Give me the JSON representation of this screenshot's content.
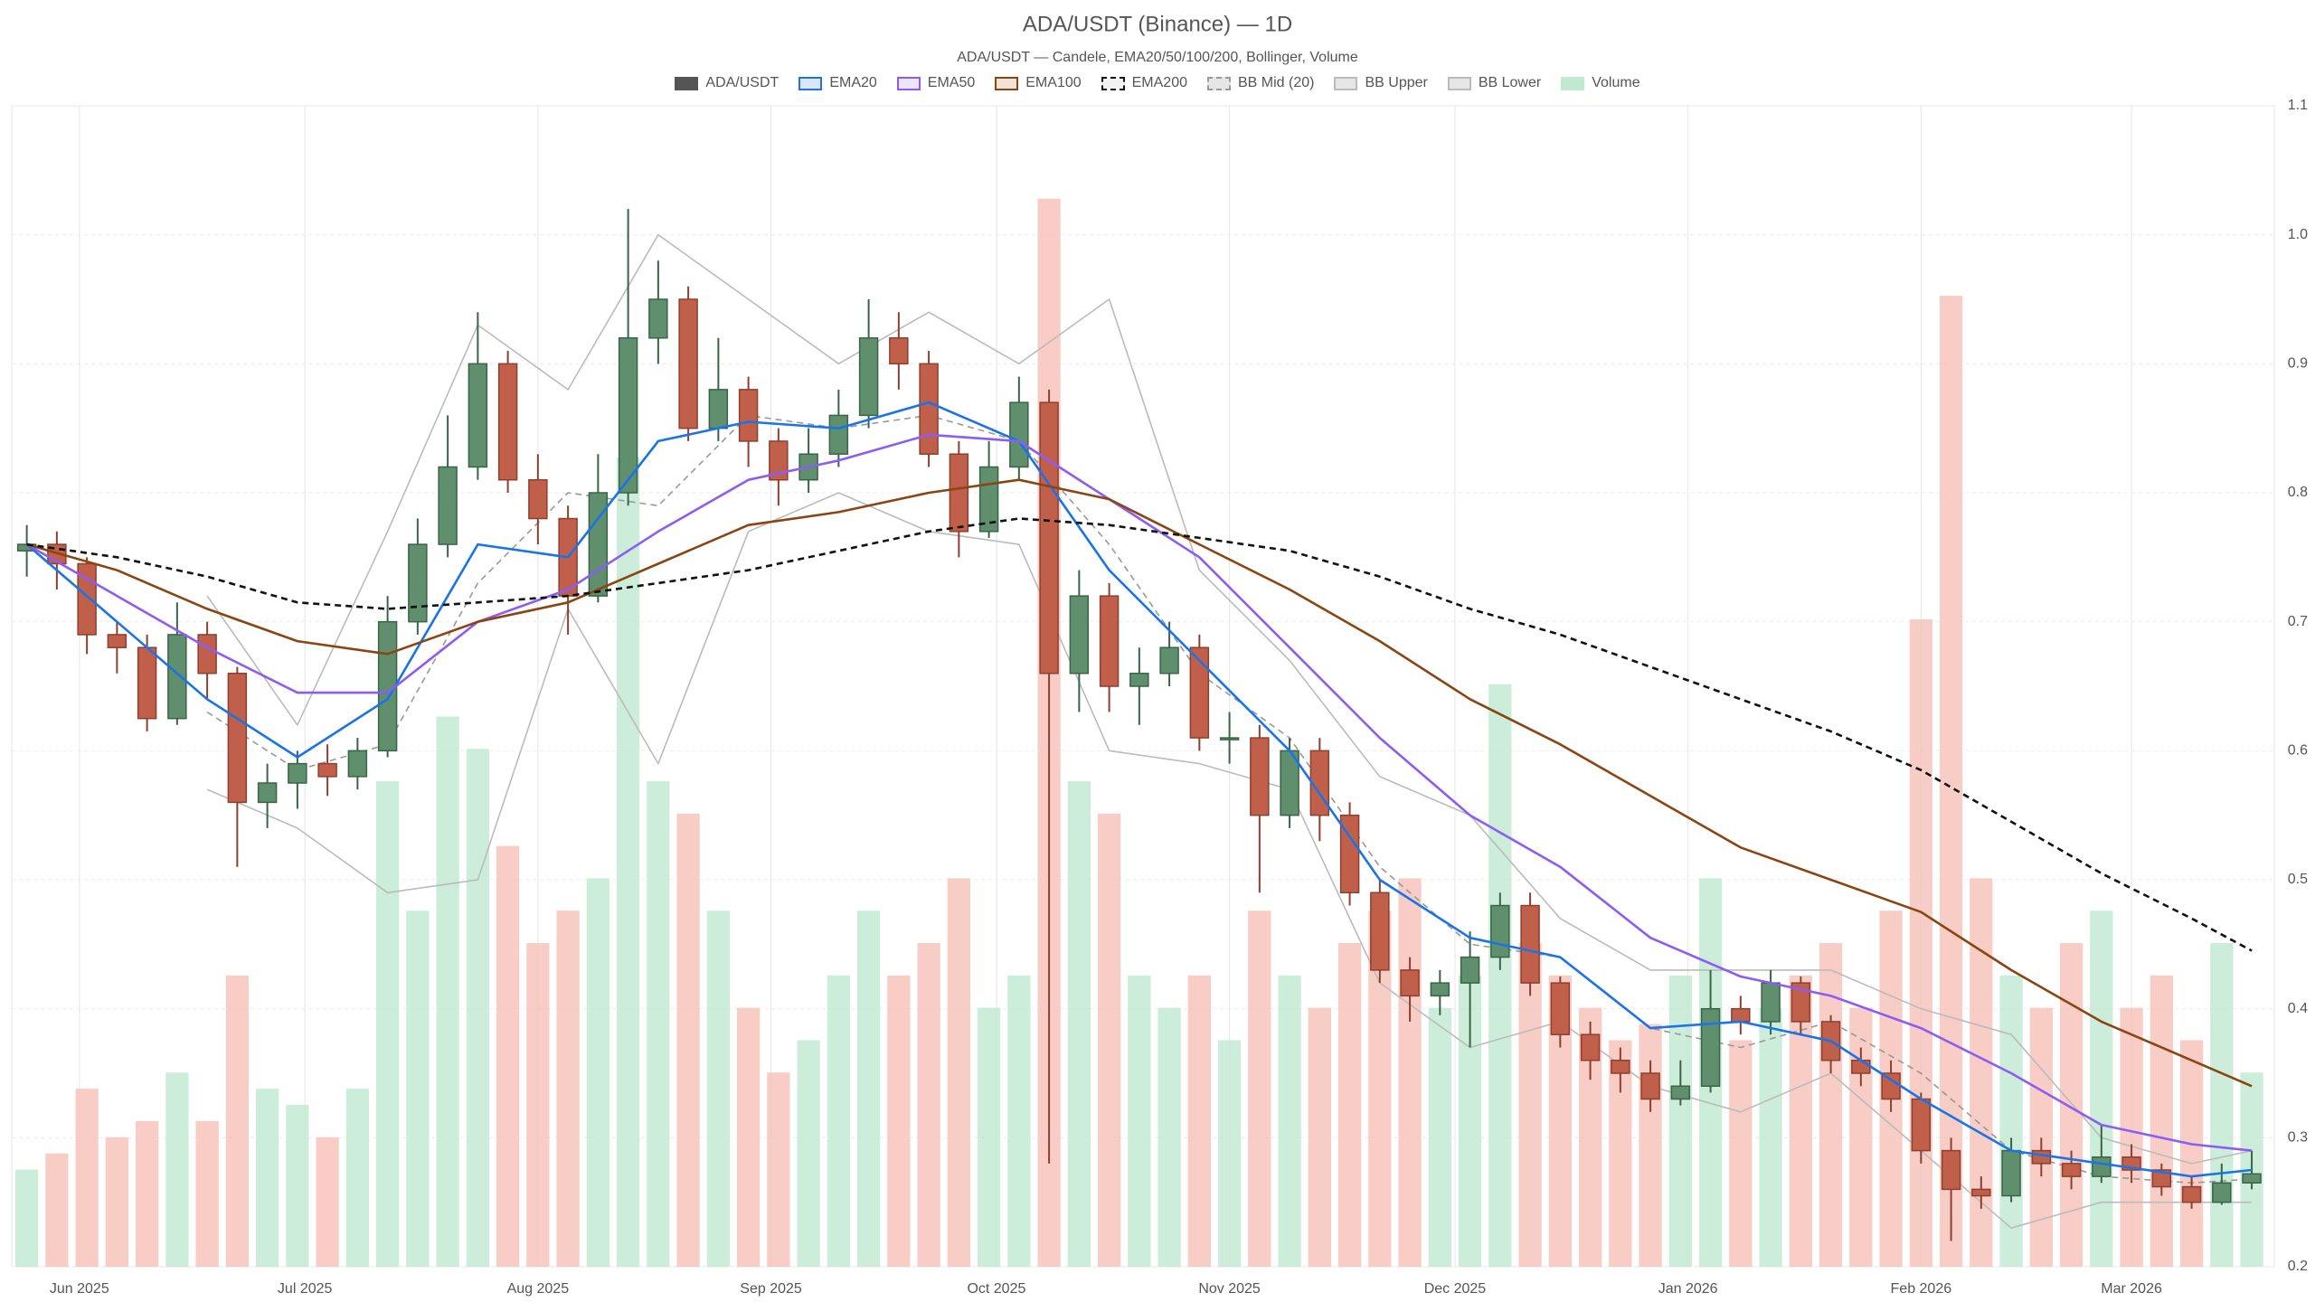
{
  "chart_data": {
    "type": "candlestick",
    "title": "ADA/USDT (Binance) — 1D",
    "subtitle": "ADA/USDT — Candele, EMA20/50/100/200, Bollinger, Volume",
    "series": [
      {
        "name": "ADA/USDT",
        "color": "#555555",
        "up_color": "#5f8f6c",
        "down_color": "#c0604a",
        "x": [
          -7,
          -3,
          1,
          5,
          9,
          13,
          17,
          21,
          25,
          29,
          33,
          37,
          41,
          45,
          49,
          53,
          57,
          61,
          65,
          69,
          73,
          77,
          81,
          85,
          89,
          93,
          97,
          101,
          105,
          109,
          113,
          117,
          121,
          125,
          129,
          133,
          137,
          141,
          145,
          149,
          153,
          157,
          161,
          165,
          169,
          173,
          177,
          181,
          185,
          189,
          193,
          197,
          201,
          205,
          209,
          213,
          217,
          221,
          225,
          229,
          233,
          237,
          241,
          245,
          249,
          253,
          257,
          261,
          265,
          269,
          273,
          277,
          281,
          285,
          289
        ],
        "open": [
          0.755,
          0.76,
          0.745,
          0.69,
          0.68,
          0.625,
          0.69,
          0.66,
          0.56,
          0.575,
          0.59,
          0.58,
          0.6,
          0.7,
          0.76,
          0.82,
          0.9,
          0.81,
          0.78,
          0.72,
          0.8,
          0.92,
          0.95,
          0.85,
          0.88,
          0.84,
          0.81,
          0.83,
          0.86,
          0.92,
          0.9,
          0.83,
          0.77,
          0.82,
          0.87,
          0.66,
          0.72,
          0.65,
          0.66,
          0.68,
          0.61,
          0.61,
          0.55,
          0.6,
          0.55,
          0.49,
          0.43,
          0.41,
          0.42,
          0.44,
          0.48,
          0.42,
          0.38,
          0.36,
          0.35,
          0.33,
          0.34,
          0.4,
          0.39,
          0.42,
          0.39,
          0.36,
          0.35,
          0.33,
          0.29,
          0.26,
          0.255,
          0.29,
          0.28,
          0.27,
          0.285,
          0.275,
          0.262,
          0.25,
          0.265
        ],
        "high": [
          0.775,
          0.77,
          0.75,
          0.7,
          0.69,
          0.715,
          0.7,
          0.665,
          0.59,
          0.6,
          0.605,
          0.61,
          0.72,
          0.78,
          0.86,
          0.94,
          0.91,
          0.83,
          0.79,
          0.83,
          1.02,
          0.98,
          0.96,
          0.92,
          0.89,
          0.85,
          0.85,
          0.88,
          0.95,
          0.94,
          0.91,
          0.84,
          0.84,
          0.89,
          0.88,
          0.74,
          0.73,
          0.68,
          0.7,
          0.69,
          0.63,
          0.62,
          0.61,
          0.61,
          0.56,
          0.5,
          0.44,
          0.43,
          0.46,
          0.49,
          0.49,
          0.425,
          0.39,
          0.37,
          0.36,
          0.36,
          0.43,
          0.41,
          0.43,
          0.425,
          0.395,
          0.37,
          0.36,
          0.335,
          0.3,
          0.27,
          0.3,
          0.3,
          0.29,
          0.31,
          0.295,
          0.28,
          0.27,
          0.28,
          0.29
        ],
        "low": [
          0.735,
          0.725,
          0.675,
          0.66,
          0.615,
          0.62,
          0.64,
          0.51,
          0.54,
          0.555,
          0.565,
          0.57,
          0.595,
          0.69,
          0.75,
          0.81,
          0.8,
          0.76,
          0.69,
          0.715,
          0.79,
          0.9,
          0.84,
          0.84,
          0.82,
          0.79,
          0.8,
          0.82,
          0.85,
          0.88,
          0.82,
          0.75,
          0.765,
          0.81,
          0.28,
          0.63,
          0.63,
          0.62,
          0.65,
          0.6,
          0.59,
          0.49,
          0.54,
          0.53,
          0.48,
          0.42,
          0.39,
          0.395,
          0.37,
          0.43,
          0.41,
          0.37,
          0.345,
          0.335,
          0.32,
          0.325,
          0.335,
          0.38,
          0.38,
          0.38,
          0.35,
          0.34,
          0.32,
          0.28,
          0.22,
          0.245,
          0.25,
          0.27,
          0.26,
          0.265,
          0.265,
          0.255,
          0.245,
          0.248,
          0.26
        ],
        "close": [
          0.76,
          0.745,
          0.69,
          0.68,
          0.625,
          0.69,
          0.66,
          0.56,
          0.575,
          0.59,
          0.58,
          0.6,
          0.7,
          0.76,
          0.82,
          0.9,
          0.81,
          0.78,
          0.72,
          0.8,
          0.92,
          0.95,
          0.85,
          0.88,
          0.84,
          0.81,
          0.83,
          0.86,
          0.92,
          0.9,
          0.83,
          0.77,
          0.82,
          0.87,
          0.66,
          0.72,
          0.65,
          0.66,
          0.68,
          0.61,
          0.61,
          0.55,
          0.6,
          0.55,
          0.49,
          0.43,
          0.41,
          0.42,
          0.44,
          0.48,
          0.42,
          0.38,
          0.36,
          0.35,
          0.33,
          0.34,
          0.4,
          0.39,
          0.42,
          0.39,
          0.36,
          0.35,
          0.33,
          0.29,
          0.26,
          0.255,
          0.29,
          0.28,
          0.27,
          0.285,
          0.275,
          0.262,
          0.25,
          0.265,
          0.272
        ]
      }
    ],
    "volume": {
      "name": "Volume",
      "up_color": "#bfe9d0",
      "down_color": "#f5c0b8",
      "values": [
        30,
        35,
        55,
        40,
        45,
        60,
        45,
        90,
        55,
        50,
        40,
        55,
        150,
        110,
        170,
        160,
        130,
        100,
        110,
        120,
        250,
        150,
        140,
        110,
        80,
        60,
        70,
        90,
        110,
        90,
        100,
        120,
        80,
        90,
        330,
        150,
        140,
        90,
        80,
        90,
        70,
        110,
        90,
        80,
        100,
        110,
        120,
        80,
        90,
        180,
        100,
        90,
        80,
        70,
        75,
        90,
        120,
        70,
        80,
        90,
        100,
        80,
        110,
        200,
        300,
        120,
        90,
        80,
        100,
        110,
        80,
        90,
        70,
        100,
        60
      ]
    },
    "indicator_x": [
      -7,
      5,
      17,
      29,
      41,
      53,
      65,
      77,
      89,
      101,
      113,
      125,
      137,
      149,
      161,
      173,
      185,
      197,
      209,
      221,
      233,
      245,
      257,
      269,
      281,
      289
    ],
    "indicators": [
      {
        "name": "EMA20",
        "color": "#1a73e8",
        "fill": "#dbe8fb",
        "dash": false,
        "values": [
          0.76,
          0.7,
          0.64,
          0.595,
          0.64,
          0.76,
          0.75,
          0.84,
          0.855,
          0.85,
          0.87,
          0.84,
          0.74,
          0.67,
          0.6,
          0.5,
          0.455,
          0.44,
          0.385,
          0.39,
          0.375,
          0.33,
          0.29,
          0.28,
          0.27,
          0.275
        ]
      },
      {
        "name": "EMA50",
        "color": "#8b5cf6",
        "fill": "#ede5fd",
        "dash": false,
        "values": [
          0.76,
          0.72,
          0.68,
          0.645,
          0.645,
          0.7,
          0.725,
          0.77,
          0.81,
          0.825,
          0.845,
          0.84,
          0.795,
          0.75,
          0.68,
          0.61,
          0.55,
          0.51,
          0.455,
          0.425,
          0.41,
          0.385,
          0.35,
          0.31,
          0.295,
          0.29
        ]
      },
      {
        "name": "EMA100",
        "color": "#8b4513",
        "fill": "#f1e3d8",
        "dash": false,
        "values": [
          0.76,
          0.74,
          0.71,
          0.685,
          0.675,
          0.7,
          0.715,
          0.745,
          0.775,
          0.785,
          0.8,
          0.81,
          0.795,
          0.76,
          0.725,
          0.685,
          0.64,
          0.605,
          0.565,
          0.525,
          0.5,
          0.475,
          0.43,
          0.39,
          0.36,
          0.34
        ]
      },
      {
        "name": "EMA200",
        "color": "#111111",
        "fill": "#f2f2f2",
        "dash": true,
        "values": [
          0.76,
          0.75,
          0.735,
          0.715,
          0.71,
          0.715,
          0.72,
          0.73,
          0.74,
          0.755,
          0.77,
          0.78,
          0.775,
          0.765,
          0.755,
          0.735,
          0.71,
          0.69,
          0.665,
          0.64,
          0.615,
          0.585,
          0.545,
          0.505,
          0.47,
          0.445
        ]
      },
      {
        "name": "BB Mid (20)",
        "color": "#999999",
        "fill": "#e6e6e6",
        "dash": true,
        "values": [
          null,
          null,
          0.63,
          0.585,
          0.605,
          0.73,
          0.8,
          0.79,
          0.86,
          0.85,
          0.86,
          0.84,
          0.76,
          0.66,
          0.61,
          0.51,
          0.45,
          0.44,
          0.385,
          0.37,
          0.39,
          0.35,
          0.29,
          0.27,
          0.265,
          0.268
        ]
      },
      {
        "name": "BB Upper",
        "color": "#bbbbbb",
        "fill": "#e6e6e6",
        "dash": false,
        "values": [
          null,
          null,
          0.72,
          0.62,
          0.77,
          0.93,
          0.88,
          1.0,
          0.95,
          0.9,
          0.94,
          0.9,
          0.95,
          0.74,
          0.67,
          0.58,
          0.55,
          0.47,
          0.43,
          0.43,
          0.43,
          0.4,
          0.38,
          0.3,
          0.28,
          0.29
        ]
      },
      {
        "name": "BB Lower",
        "color": "#bbbbbb",
        "fill": "#e6e6e6",
        "dash": false,
        "values": [
          null,
          null,
          0.57,
          0.54,
          0.49,
          0.5,
          0.71,
          0.59,
          0.77,
          0.8,
          0.77,
          0.76,
          0.6,
          0.59,
          0.57,
          0.42,
          0.37,
          0.39,
          0.34,
          0.32,
          0.35,
          0.29,
          0.23,
          0.25,
          0.25,
          0.25
        ]
      }
    ],
    "xlim": [
      -9,
      292
    ],
    "xticks": [
      {
        "value": 0,
        "label": "Jun 2025"
      },
      {
        "value": 30,
        "label": "Jul 2025"
      },
      {
        "value": 61,
        "label": "Aug 2025"
      },
      {
        "value": 92,
        "label": "Sep 2025"
      },
      {
        "value": 122,
        "label": "Oct 2025"
      },
      {
        "value": 153,
        "label": "Nov 2025"
      },
      {
        "value": 183,
        "label": "Dec 2025"
      },
      {
        "value": 214,
        "label": "Jan 2026"
      },
      {
        "value": 245,
        "label": "Feb 2026"
      },
      {
        "value": 273,
        "label": "Mar 2026"
      }
    ],
    "ylim": [
      0.2,
      1.1
    ],
    "yticks": [
      0.2,
      0.3,
      0.4,
      0.5,
      0.6,
      0.7,
      0.8,
      0.9,
      {
        "value": 1,
        "label": "1.0"
      },
      1.1
    ],
    "grid": true
  }
}
